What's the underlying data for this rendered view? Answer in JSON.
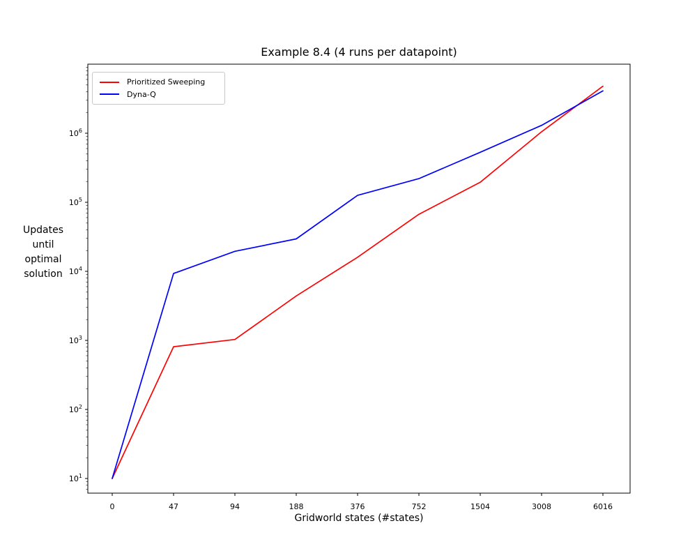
{
  "figure": {
    "background": "#ffffff",
    "text_color": "#000000"
  },
  "chart_data": {
    "type": "line",
    "title": "Example 8.4 (4 runs per datapoint)",
    "xlabel": "Gridworld states (#states)",
    "ylabel": "Updates\nuntil\noptimal\nsolution",
    "x_tick_labels": [
      "0",
      "47",
      "94",
      "188",
      "376",
      "752",
      "1504",
      "3008",
      "6016"
    ],
    "x_values": [
      0,
      47,
      94,
      188,
      376,
      752,
      1504,
      3008,
      6016
    ],
    "x_spacing": "uniform",
    "y_scale": "log10",
    "y_tick_exponents": [
      1,
      2,
      3,
      4,
      5,
      6
    ],
    "ylim": [
      6.3,
      10000000
    ],
    "grid": false,
    "legend_position": "upper-left",
    "series": [
      {
        "name": "Prioritized Sweeping",
        "color": "#ff0000",
        "values": [
          10,
          810,
          1030,
          4400,
          16000,
          67000,
          195000,
          1050000,
          4800000
        ]
      },
      {
        "name": "Dyna-Q",
        "color": "#0000ff",
        "values": [
          10,
          9300,
          19500,
          29500,
          126000,
          220000,
          530000,
          1300000,
          4100000
        ]
      }
    ]
  }
}
